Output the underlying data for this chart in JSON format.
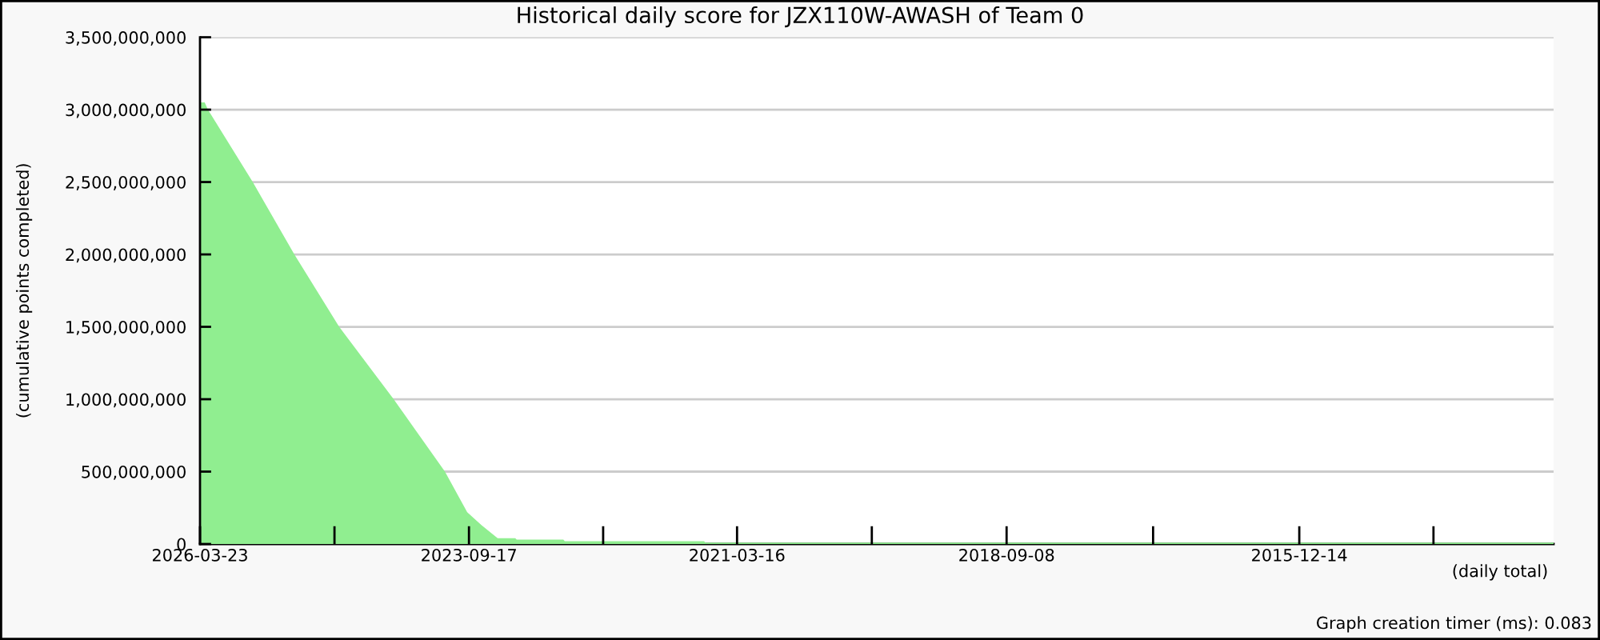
{
  "chart_data": {
    "type": "area",
    "title": "Historical daily score for JZX110W-AWASH of Team 0",
    "xlabel": "(daily total)",
    "ylabel": "(cumulative points completed)",
    "annotations": [
      "Graph creation timer (ms): 0.083"
    ],
    "x": [
      "2026-03-23",
      "2026-03-07",
      "2026-02-24",
      "2025-09-24",
      "2025-05-05",
      "2024-12-03",
      "2024-05-31",
      "2023-12-08",
      "2023-09-23",
      "2023-08-05",
      "2023-06-17",
      "2023-06-11",
      "2023-04-12",
      "2023-04-07",
      "2022-10-30",
      "2022-10-25",
      "2021-07-07",
      "2021-07-01",
      "2013-07-29"
    ],
    "values": [
      3050000000,
      3050000000,
      3000000000,
      2500000000,
      2000000000,
      1500000000,
      1000000000,
      500000000,
      220000000,
      130000000,
      50000000,
      40000000,
      40000000,
      30000000,
      30000000,
      20000000,
      20000000,
      10000000,
      10000000
    ],
    "color": "#90ee90",
    "xlim": [
      "2026-03-23",
      "2013-07-29"
    ],
    "xticks": [
      {
        "value": "2026-03-23",
        "label": "2026-03-23"
      },
      {
        "value": "2024-12-19",
        "label": null
      },
      {
        "value": "2023-09-17",
        "label": "2023-09-17"
      },
      {
        "value": "2022-06-16",
        "label": null
      },
      {
        "value": "2021-03-16",
        "label": "2021-03-16"
      },
      {
        "value": "2019-12-12",
        "label": null
      },
      {
        "value": "2018-09-08",
        "label": "2018-09-08"
      },
      {
        "value": "2017-04-26",
        "label": null
      },
      {
        "value": "2015-12-14",
        "label": "2015-12-14"
      },
      {
        "value": "2014-09-12",
        "label": null
      }
    ],
    "ylim": [
      0,
      3500000000
    ],
    "yticks": [
      0,
      {
        "value": 500000000,
        "label": "500,000,000"
      },
      {
        "value": 1000000000,
        "label": "1,000,000,000"
      },
      {
        "value": 1500000000,
        "label": "1,500,000,000"
      },
      {
        "value": 2000000000,
        "label": "2,000,000,000"
      },
      {
        "value": 2500000000,
        "label": "2,500,000,000"
      },
      {
        "value": 3000000000,
        "label": "3,000,000,000"
      },
      {
        "value": 3500000000,
        "label": "3,500,000,000"
      }
    ],
    "grid": "y"
  }
}
